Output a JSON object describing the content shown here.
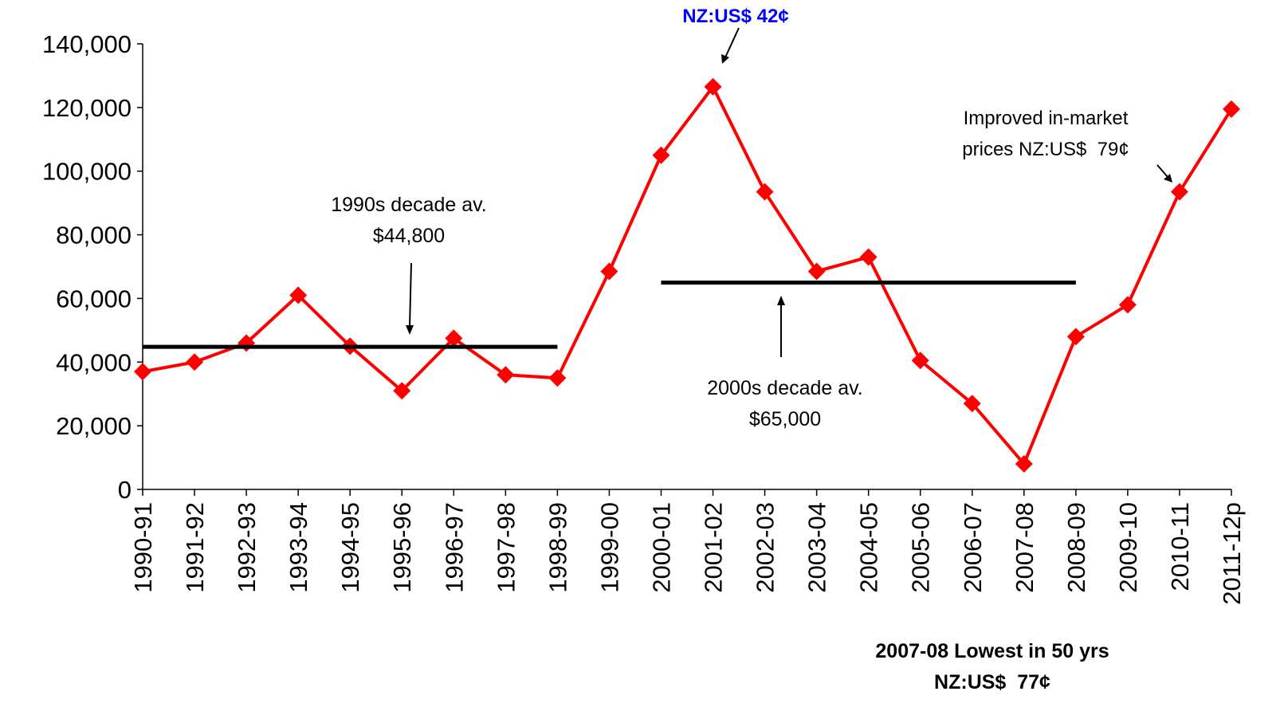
{
  "chart_data": {
    "type": "line",
    "categories": [
      "1990-91",
      "1991-92",
      "1992-93",
      "1993-94",
      "1994-95",
      "1995-96",
      "1996-97",
      "1997-98",
      "1998-99",
      "1999-00",
      "2000-01",
      "2001-02",
      "2002-03",
      "2003-04",
      "2004-05",
      "2005-06",
      "2006-07",
      "2007-08",
      "2008-09",
      "2009-10",
      "2010-11",
      "2011-12p"
    ],
    "series": [
      {
        "color": "#ff0000",
        "marker": "diamond",
        "values": [
          37000,
          40000,
          46000,
          61000,
          45000,
          31000,
          47500,
          36000,
          35000,
          68500,
          105000,
          126500,
          93500,
          68500,
          73000,
          40500,
          27000,
          8000,
          48000,
          58000,
          93500,
          119500
        ]
      },
      {
        "color": "#000000",
        "values": [
          44800,
          44800,
          44800,
          44800,
          44800,
          44800,
          44800,
          44800,
          44800,
          null,
          null,
          null,
          null,
          null,
          null,
          null,
          null,
          null,
          null,
          null,
          null,
          null
        ]
      },
      {
        "color": "#000000",
        "values": [
          null,
          null,
          null,
          null,
          null,
          null,
          null,
          null,
          null,
          null,
          65000,
          65000,
          65000,
          65000,
          65000,
          65000,
          65000,
          65000,
          65000,
          null,
          null,
          null
        ]
      }
    ],
    "ylim": [
      0,
      140000
    ],
    "yticks": [
      0,
      {
        "value": 20000,
        "label": "20,000"
      },
      {
        "value": 40000,
        "label": "40,000"
      },
      {
        "value": 60000,
        "label": "60,000"
      },
      {
        "value": 80000,
        "label": "80,000"
      },
      {
        "value": 100000,
        "label": "100,000"
      },
      {
        "value": 120000,
        "label": "120,000"
      },
      {
        "value": 140000,
        "label": "140,000"
      }
    ],
    "annotations": [
      {
        "lines": [
          "NZ:US$ 42¢"
        ],
        "color": "#0000ff",
        "bold": true
      },
      {
        "lines": [
          "Improved in-market",
          "prices NZ:US$  79¢"
        ]
      },
      {
        "lines": [
          "1990s decade av.",
          "$44,800"
        ]
      },
      {
        "lines": [
          "2000s decade av.",
          "$65,000"
        ]
      },
      {
        "lines": [
          "2007-08 Lowest in 50 yrs",
          "NZ:US$  77¢"
        ],
        "bold": true
      }
    ]
  }
}
